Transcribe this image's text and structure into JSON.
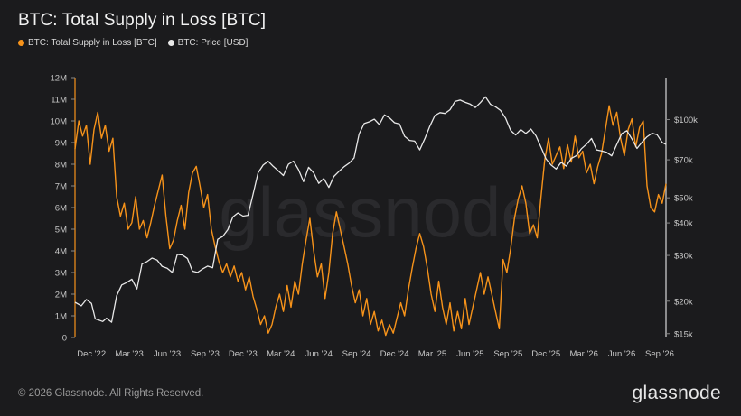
{
  "title": "BTC: Total Supply in Loss [BTC]",
  "footer": "© 2026 Glassnode. All Rights Reserved.",
  "brand": "glassnode",
  "watermark": "glassnode",
  "colors": {
    "background": "#1b1b1d",
    "supply": "#f7931a",
    "price": "#e8e8e8",
    "axis_text": "#c8c8c8"
  },
  "chart_data": {
    "type": "line",
    "legend": [
      {
        "name": "BTC: Total Supply in Loss [BTC]",
        "color": "#f7931a"
      },
      {
        "name": "BTC: Price [USD]",
        "color": "#e8e8e8"
      }
    ],
    "x_ticks": [
      "Dec '22",
      "Mar '23",
      "Jun '23",
      "Sep '23",
      "Dec '23",
      "Mar '24",
      "Jun '24",
      "Sep '24",
      "Dec '24",
      "Mar '25",
      "Jun '25",
      "Sep '25",
      "Dec '25",
      "Mar '26",
      "Jun '26",
      "Sep '26"
    ],
    "y_left": {
      "ticks": [
        "0",
        "1M",
        "2M",
        "3M",
        "4M",
        "5M",
        "6M",
        "7M",
        "8M",
        "9M",
        "10M",
        "11M",
        "12M"
      ],
      "ylim": [
        0,
        12000000
      ]
    },
    "y_right": {
      "scale": "log",
      "ticks": [
        "$15k",
        "$20k",
        "$30k",
        "$40k",
        "$50k",
        "$70k",
        "$100k"
      ],
      "tick_values": [
        15000,
        20000,
        30000,
        40000,
        50000,
        70000,
        100000
      ],
      "ylim": [
        14500,
        145000
      ]
    },
    "x_range_months": [
      -1.3,
      45.5
    ],
    "series": [
      {
        "name": "BTC: Total Supply in Loss [BTC]",
        "axis": "left",
        "points": [
          [
            -1.3,
            8.7
          ],
          [
            -1.0,
            10.0
          ],
          [
            -0.7,
            9.3
          ],
          [
            -0.4,
            9.8
          ],
          [
            -0.1,
            8.0
          ],
          [
            0.2,
            9.6
          ],
          [
            0.5,
            10.4
          ],
          [
            0.8,
            9.2
          ],
          [
            1.1,
            9.8
          ],
          [
            1.4,
            8.6
          ],
          [
            1.7,
            9.2
          ],
          [
            2.0,
            6.5
          ],
          [
            2.3,
            5.6
          ],
          [
            2.6,
            6.2
          ],
          [
            2.9,
            5.0
          ],
          [
            3.2,
            5.3
          ],
          [
            3.5,
            6.5
          ],
          [
            3.8,
            5.0
          ],
          [
            4.1,
            5.4
          ],
          [
            4.4,
            4.6
          ],
          [
            4.7,
            5.3
          ],
          [
            5.0,
            6.1
          ],
          [
            5.3,
            6.8
          ],
          [
            5.6,
            7.5
          ],
          [
            5.9,
            5.6
          ],
          [
            6.2,
            4.1
          ],
          [
            6.5,
            4.5
          ],
          [
            6.8,
            5.4
          ],
          [
            7.1,
            6.1
          ],
          [
            7.4,
            5.0
          ],
          [
            7.7,
            6.7
          ],
          [
            8.0,
            7.6
          ],
          [
            8.3,
            7.9
          ],
          [
            8.6,
            7.0
          ],
          [
            8.9,
            6.0
          ],
          [
            9.2,
            6.6
          ],
          [
            9.5,
            5.0
          ],
          [
            9.8,
            4.2
          ],
          [
            10.1,
            3.5
          ],
          [
            10.4,
            3.0
          ],
          [
            10.7,
            3.4
          ],
          [
            11.0,
            2.8
          ],
          [
            11.3,
            3.3
          ],
          [
            11.6,
            2.6
          ],
          [
            11.9,
            3.0
          ],
          [
            12.2,
            2.2
          ],
          [
            12.5,
            2.8
          ],
          [
            12.8,
            1.9
          ],
          [
            13.1,
            1.3
          ],
          [
            13.4,
            0.6
          ],
          [
            13.7,
            1.0
          ],
          [
            14.0,
            0.2
          ],
          [
            14.3,
            0.6
          ],
          [
            14.6,
            1.4
          ],
          [
            14.9,
            2.0
          ],
          [
            15.2,
            1.2
          ],
          [
            15.5,
            2.4
          ],
          [
            15.8,
            1.4
          ],
          [
            16.1,
            2.6
          ],
          [
            16.4,
            2.0
          ],
          [
            16.7,
            3.4
          ],
          [
            17.0,
            4.5
          ],
          [
            17.3,
            5.5
          ],
          [
            17.6,
            4.0
          ],
          [
            17.9,
            2.8
          ],
          [
            18.2,
            3.4
          ],
          [
            18.5,
            1.8
          ],
          [
            18.8,
            3.0
          ],
          [
            19.1,
            4.8
          ],
          [
            19.4,
            5.8
          ],
          [
            19.7,
            5.0
          ],
          [
            20.0,
            4.2
          ],
          [
            20.3,
            3.4
          ],
          [
            20.6,
            2.4
          ],
          [
            20.9,
            1.6
          ],
          [
            21.2,
            2.2
          ],
          [
            21.5,
            1.0
          ],
          [
            21.8,
            1.8
          ],
          [
            22.1,
            0.6
          ],
          [
            22.4,
            1.2
          ],
          [
            22.7,
            0.3
          ],
          [
            23.0,
            0.8
          ],
          [
            23.3,
            0.1
          ],
          [
            23.6,
            0.6
          ],
          [
            23.9,
            0.2
          ],
          [
            24.2,
            0.9
          ],
          [
            24.5,
            1.6
          ],
          [
            24.8,
            1.0
          ],
          [
            25.1,
            2.2
          ],
          [
            25.4,
            3.2
          ],
          [
            25.7,
            4.1
          ],
          [
            26.0,
            4.8
          ],
          [
            26.3,
            4.2
          ],
          [
            26.6,
            3.2
          ],
          [
            26.9,
            2.0
          ],
          [
            27.2,
            1.2
          ],
          [
            27.5,
            2.6
          ],
          [
            27.8,
            1.4
          ],
          [
            28.1,
            0.6
          ],
          [
            28.4,
            1.6
          ],
          [
            28.7,
            0.3
          ],
          [
            29.0,
            1.2
          ],
          [
            29.3,
            0.4
          ],
          [
            29.6,
            1.8
          ],
          [
            29.9,
            0.6
          ],
          [
            30.2,
            1.4
          ],
          [
            30.5,
            2.2
          ],
          [
            30.8,
            3.0
          ],
          [
            31.1,
            2.0
          ],
          [
            31.4,
            2.8
          ],
          [
            31.7,
            2.0
          ],
          [
            32.0,
            1.2
          ],
          [
            32.3,
            0.4
          ],
          [
            32.6,
            3.6
          ],
          [
            32.9,
            3.0
          ],
          [
            33.2,
            4.1
          ],
          [
            33.5,
            5.5
          ],
          [
            33.8,
            6.4
          ],
          [
            34.1,
            7.0
          ],
          [
            34.4,
            6.2
          ],
          [
            34.7,
            4.8
          ],
          [
            35.0,
            5.2
          ],
          [
            35.3,
            4.6
          ],
          [
            35.6,
            6.5
          ],
          [
            35.9,
            8.2
          ],
          [
            36.2,
            9.2
          ],
          [
            36.5,
            8.0
          ],
          [
            36.8,
            8.4
          ],
          [
            37.1,
            8.8
          ],
          [
            37.4,
            7.8
          ],
          [
            37.7,
            8.9
          ],
          [
            38.0,
            8.1
          ],
          [
            38.3,
            9.3
          ],
          [
            38.6,
            8.3
          ],
          [
            38.9,
            8.6
          ],
          [
            39.2,
            7.6
          ],
          [
            39.5,
            8.0
          ],
          [
            39.8,
            7.1
          ],
          [
            40.1,
            7.9
          ],
          [
            40.4,
            8.5
          ],
          [
            40.7,
            9.6
          ],
          [
            41.0,
            10.7
          ],
          [
            41.3,
            9.8
          ],
          [
            41.6,
            10.4
          ],
          [
            41.9,
            9.2
          ],
          [
            42.2,
            8.4
          ],
          [
            42.5,
            9.6
          ],
          [
            42.8,
            10.1
          ],
          [
            43.1,
            8.8
          ],
          [
            43.4,
            9.7
          ],
          [
            43.7,
            10.0
          ],
          [
            44.0,
            7.0
          ],
          [
            44.3,
            6.0
          ],
          [
            44.6,
            5.8
          ],
          [
            44.9,
            6.6
          ],
          [
            45.2,
            6.2
          ],
          [
            45.5,
            7.1
          ]
        ],
        "unit": "M BTC"
      },
      {
        "name": "BTC: Price [USD]",
        "axis": "right",
        "points": [
          [
            -1.3,
            19800
          ],
          [
            -0.8,
            19200
          ],
          [
            -0.4,
            20300
          ],
          [
            0.0,
            19600
          ],
          [
            0.3,
            17100
          ],
          [
            0.6,
            16900
          ],
          [
            0.9,
            16700
          ],
          [
            1.2,
            17200
          ],
          [
            1.6,
            16600
          ],
          [
            2.0,
            21000
          ],
          [
            2.4,
            23100
          ],
          [
            2.8,
            23600
          ],
          [
            3.2,
            24300
          ],
          [
            3.6,
            22300
          ],
          [
            4.0,
            27800
          ],
          [
            4.4,
            28400
          ],
          [
            4.8,
            29300
          ],
          [
            5.2,
            28800
          ],
          [
            5.6,
            27200
          ],
          [
            6.0,
            26800
          ],
          [
            6.4,
            25800
          ],
          [
            6.8,
            30300
          ],
          [
            7.2,
            30100
          ],
          [
            7.6,
            29200
          ],
          [
            8.0,
            26100
          ],
          [
            8.4,
            25800
          ],
          [
            8.8,
            26600
          ],
          [
            9.2,
            27300
          ],
          [
            9.6,
            26900
          ],
          [
            10.0,
            34600
          ],
          [
            10.4,
            35500
          ],
          [
            10.8,
            37700
          ],
          [
            11.2,
            42200
          ],
          [
            11.6,
            43700
          ],
          [
            12.0,
            42500
          ],
          [
            12.4,
            42800
          ],
          [
            12.8,
            51500
          ],
          [
            13.2,
            62400
          ],
          [
            13.6,
            66800
          ],
          [
            14.0,
            69100
          ],
          [
            14.4,
            66000
          ],
          [
            14.8,
            63500
          ],
          [
            15.2,
            60900
          ],
          [
            15.6,
            67300
          ],
          [
            16.0,
            69200
          ],
          [
            16.4,
            64200
          ],
          [
            16.8,
            57700
          ],
          [
            17.2,
            65500
          ],
          [
            17.6,
            62400
          ],
          [
            18.0,
            56800
          ],
          [
            18.4,
            59300
          ],
          [
            18.8,
            54800
          ],
          [
            19.2,
            60400
          ],
          [
            19.6,
            63200
          ],
          [
            20.0,
            65800
          ],
          [
            20.4,
            67900
          ],
          [
            20.8,
            71100
          ],
          [
            21.2,
            88000
          ],
          [
            21.6,
            96500
          ],
          [
            22.0,
            98000
          ],
          [
            22.4,
            100300
          ],
          [
            22.8,
            95700
          ],
          [
            23.2,
            104200
          ],
          [
            23.6,
            101500
          ],
          [
            24.0,
            97200
          ],
          [
            24.4,
            96100
          ],
          [
            24.8,
            86200
          ],
          [
            25.2,
            83100
          ],
          [
            25.6,
            82600
          ],
          [
            26.0,
            76400
          ],
          [
            26.4,
            84400
          ],
          [
            26.8,
            94300
          ],
          [
            27.2,
            103700
          ],
          [
            27.6,
            106300
          ],
          [
            28.0,
            105600
          ],
          [
            28.4,
            109100
          ],
          [
            28.8,
            117400
          ],
          [
            29.2,
            118800
          ],
          [
            29.6,
            116500
          ],
          [
            30.0,
            114600
          ],
          [
            30.4,
            111200
          ],
          [
            30.8,
            116200
          ],
          [
            31.2,
            122300
          ],
          [
            31.6,
            114400
          ],
          [
            32.0,
            112000
          ],
          [
            32.4,
            108400
          ],
          [
            32.8,
            101200
          ],
          [
            33.2,
            90800
          ],
          [
            33.6,
            87200
          ],
          [
            34.0,
            91500
          ],
          [
            34.4,
            88400
          ],
          [
            34.8,
            91900
          ],
          [
            35.2,
            86600
          ],
          [
            35.6,
            78300
          ],
          [
            36.0,
            70600
          ],
          [
            36.4,
            66800
          ],
          [
            36.8,
            64500
          ],
          [
            37.2,
            68500
          ],
          [
            37.6,
            66200
          ],
          [
            38.0,
            70900
          ],
          [
            38.4,
            72600
          ],
          [
            38.8,
            77200
          ],
          [
            39.2,
            80400
          ],
          [
            39.6,
            84600
          ],
          [
            40.0,
            76400
          ],
          [
            40.4,
            75700
          ],
          [
            40.8,
            74800
          ],
          [
            41.2,
            72500
          ],
          [
            41.6,
            80200
          ],
          [
            42.0,
            88300
          ],
          [
            42.4,
            90600
          ],
          [
            42.8,
            84200
          ],
          [
            43.2,
            77400
          ],
          [
            43.6,
            81800
          ],
          [
            44.0,
            85800
          ],
          [
            44.4,
            88600
          ],
          [
            44.8,
            87400
          ],
          [
            45.2,
            81700
          ],
          [
            45.5,
            80200
          ]
        ],
        "unit": "USD"
      }
    ],
    "grid": false,
    "legend_placement": "top-left"
  }
}
